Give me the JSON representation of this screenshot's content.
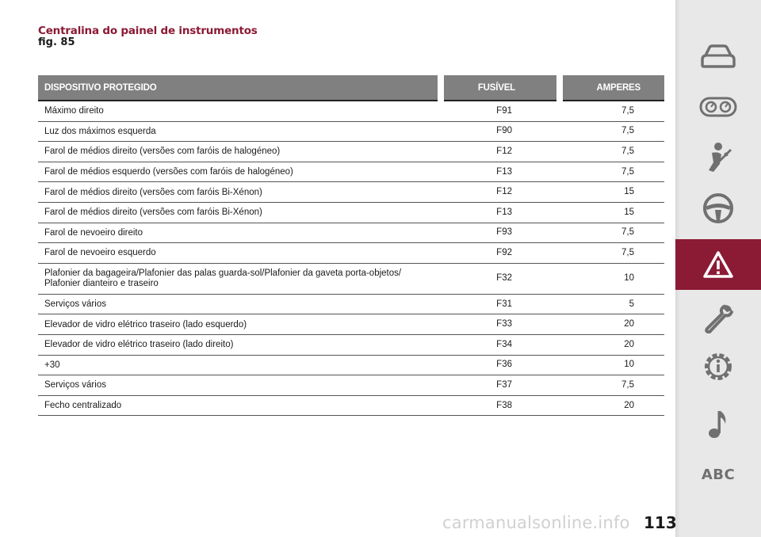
{
  "header": {
    "title": "Centralina do painel de instrumentos",
    "figure_ref": "fig. 85"
  },
  "table": {
    "columns": [
      "DISPOSITIVO PROTEGIDO",
      "FUSÍVEL",
      "AMPERES"
    ],
    "rows": [
      {
        "device": "Máximo direito",
        "fuse": "F91",
        "amperes": "7,5"
      },
      {
        "device": "Luz dos máximos esquerda",
        "fuse": "F90",
        "amperes": "7,5"
      },
      {
        "device": "Farol de médios direito (versões com faróis de halogéneo)",
        "fuse": "F12",
        "amperes": "7,5"
      },
      {
        "device": "Farol de médios esquerdo (versões com faróis de halogéneo)",
        "fuse": "F13",
        "amperes": "7,5"
      },
      {
        "device": "Farol de médios direito (versões com faróis Bi-Xénon)",
        "fuse": "F12",
        "amperes": "15"
      },
      {
        "device": "Farol de médios direito (versões com faróis Bi-Xénon)",
        "fuse": "F13",
        "amperes": "15"
      },
      {
        "device": "Farol de nevoeiro direito",
        "fuse": "F93",
        "amperes": "7,5"
      },
      {
        "device": "Farol de nevoeiro esquerdo",
        "fuse": "F92",
        "amperes": "7,5"
      },
      {
        "device": "Plafonier da bagageira/Plafonier das palas guarda-sol/Plafonier da gaveta porta-objetos/",
        "device_line2": "Plafonier dianteiro e traseiro",
        "fuse": "F32",
        "amperes": "10"
      },
      {
        "device": "Serviços vários",
        "fuse": "F31",
        "amperes": "5"
      },
      {
        "device": "Elevador de vidro elétrico traseiro (lado esquerdo)",
        "fuse": "F33",
        "amperes": "20"
      },
      {
        "device": "Elevador de vidro elétrico traseiro (lado direito)",
        "fuse": "F34",
        "amperes": "20"
      },
      {
        "device": "+30",
        "fuse": "F36",
        "amperes": "10"
      },
      {
        "device": "Serviços vários",
        "fuse": "F37",
        "amperes": "7,5"
      },
      {
        "device": "Fecho centralizado",
        "fuse": "F38",
        "amperes": "20"
      }
    ]
  },
  "sidebar": {
    "items": [
      {
        "icon": "car-icon"
      },
      {
        "icon": "dashboard-gauges-icon"
      },
      {
        "icon": "seatbelt-passenger-icon"
      },
      {
        "icon": "steering-wheel-icon"
      },
      {
        "icon": "warning-triangle-icon",
        "active": true
      },
      {
        "icon": "wrench-icon"
      },
      {
        "icon": "info-gear-icon"
      },
      {
        "icon": "music-note-icon"
      },
      {
        "icon": "text-abc",
        "label": "ABC"
      }
    ],
    "colors": {
      "background": "#e8e8e8",
      "icon": "#707070",
      "active_background": "#8b1a35",
      "active_icon": "#ffffff"
    }
  },
  "footer": {
    "page_number": "113",
    "watermark": "carmanualsonline.info"
  },
  "colors": {
    "title": "#8b1a35",
    "table_header": "#808080"
  }
}
